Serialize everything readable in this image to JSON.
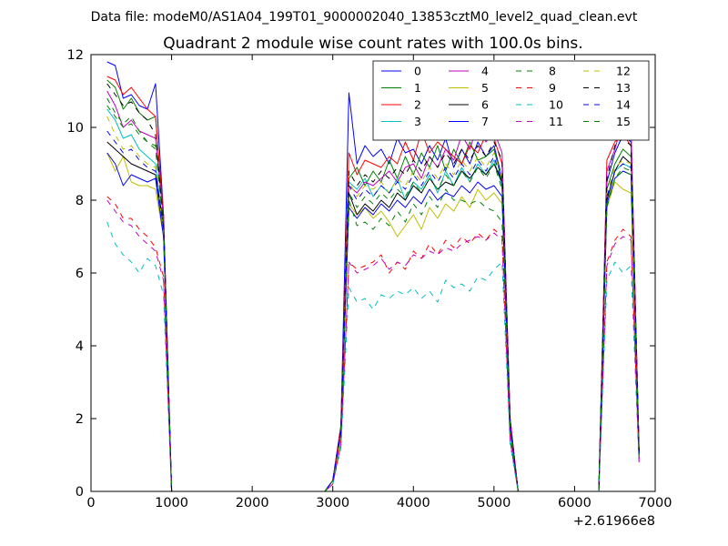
{
  "suptitle": "Data file: modeM0/AS1A04_199T01_9000002040_13853cztM0_level2_quad_clean.evt",
  "chart_data": {
    "type": "line",
    "title": "Quadrant 2 module wise count rates with 100.0s bins.",
    "xlabel": "",
    "ylabel": "",
    "xlim": [
      0,
      7000
    ],
    "ylim": [
      0,
      12
    ],
    "x_offset_label": "+2.61966e8",
    "x_ticks": [
      0,
      1000,
      2000,
      3000,
      4000,
      5000,
      6000,
      7000
    ],
    "y_ticks": [
      0,
      2,
      4,
      6,
      8,
      10,
      12
    ],
    "grid": false,
    "legend_position": "top-right",
    "legend_columns": 4,
    "x": [
      200,
      300,
      400,
      500,
      600,
      700,
      800,
      900,
      1000,
      1100,
      2900,
      3000,
      3100,
      3200,
      3300,
      3400,
      3500,
      3600,
      3700,
      3800,
      3900,
      4000,
      4100,
      4200,
      4300,
      4400,
      4500,
      4600,
      4700,
      4800,
      4900,
      5000,
      5100,
      5200,
      5300,
      5400,
      6200,
      6300,
      6400,
      6500,
      6600,
      6700,
      6800
    ],
    "series": [
      {
        "name": "0",
        "color": "#0000ff",
        "dash": "solid",
        "values": [
          11.8,
          11.7,
          10.8,
          10.9,
          10.6,
          10.5,
          11.2,
          7.6,
          0,
          0,
          0,
          0.3,
          1.8,
          10.95,
          9.0,
          9.5,
          9.2,
          9.4,
          9.0,
          9.7,
          9.3,
          9.4,
          9.0,
          9.5,
          9.1,
          9.7,
          8.9,
          9.4,
          9.0,
          9.6,
          9.2,
          9.5,
          8.6,
          1.9,
          0,
          0,
          0,
          0,
          8.5,
          9.3,
          9.8,
          9.6,
          1.1
        ]
      },
      {
        "name": "1",
        "color": "#008000",
        "dash": "solid",
        "values": [
          11.3,
          11.1,
          10.5,
          10.8,
          10.4,
          10.2,
          10.3,
          7.5,
          0,
          0,
          0,
          0.3,
          1.7,
          8.6,
          8.9,
          8.4,
          8.8,
          8.5,
          9.1,
          8.6,
          9.2,
          8.7,
          9.3,
          8.9,
          9.5,
          8.8,
          9.4,
          9.0,
          9.6,
          9.1,
          9.2,
          9.4,
          8.5,
          1.9,
          0,
          0,
          0,
          0,
          8.3,
          9.0,
          9.4,
          9.2,
          1.0
        ]
      },
      {
        "name": "2",
        "color": "#ff0000",
        "dash": "solid",
        "values": [
          11.4,
          11.3,
          10.9,
          11.1,
          10.8,
          10.5,
          10.3,
          7.6,
          0,
          0,
          0,
          0.3,
          1.8,
          9.3,
          8.7,
          9.1,
          9.0,
          8.9,
          9.2,
          9.0,
          9.6,
          9.1,
          9.9,
          9.3,
          9.6,
          9.4,
          9.2,
          9.0,
          9.5,
          9.3,
          9.8,
          9.7,
          9.0,
          2.0,
          0,
          0,
          0,
          0,
          9.1,
          9.6,
          9.8,
          9.5,
          1.1
        ]
      },
      {
        "name": "3",
        "color": "#00bfbf",
        "dash": "solid",
        "values": [
          10.5,
          10.2,
          9.7,
          9.8,
          9.4,
          9.2,
          9.0,
          7.2,
          0,
          0,
          0,
          0.3,
          1.6,
          8.5,
          8.3,
          8.6,
          8.1,
          8.4,
          8.2,
          8.6,
          8.0,
          8.5,
          8.3,
          8.7,
          8.2,
          8.8,
          8.4,
          8.9,
          8.5,
          9.0,
          8.7,
          9.1,
          8.4,
          1.8,
          0,
          0,
          0,
          0,
          8.0,
          8.8,
          9.0,
          8.9,
          1.0
        ]
      },
      {
        "name": "4",
        "color": "#bf00bf",
        "dash": "solid",
        "values": [
          11.0,
          10.6,
          10.0,
          10.2,
          9.9,
          9.8,
          9.7,
          7.5,
          0,
          0,
          0,
          0.3,
          1.7,
          8.4,
          8.2,
          8.5,
          8.4,
          8.6,
          8.8,
          8.5,
          8.9,
          9.0,
          8.6,
          9.2,
          8.9,
          9.4,
          9.1,
          9.8,
          9.4,
          10.1,
          9.6,
          9.9,
          9.3,
          2.0,
          0,
          0,
          0,
          0,
          8.8,
          9.4,
          10.2,
          10.1,
          1.1
        ]
      },
      {
        "name": "5",
        "color": "#bfbf00",
        "dash": "solid",
        "values": [
          9.3,
          8.8,
          9.2,
          8.5,
          8.4,
          8.4,
          8.3,
          7.0,
          0,
          0,
          0,
          0.3,
          1.5,
          7.9,
          7.6,
          7.8,
          7.5,
          7.7,
          7.4,
          7.0,
          7.3,
          7.6,
          7.2,
          7.8,
          7.5,
          7.9,
          7.7,
          8.1,
          7.8,
          8.3,
          8.0,
          8.2,
          7.9,
          1.7,
          0,
          0,
          0,
          0,
          7.8,
          8.5,
          8.3,
          8.2,
          0.9
        ]
      },
      {
        "name": "6",
        "color": "#000000",
        "dash": "solid",
        "values": [
          9.6,
          9.4,
          9.2,
          9.0,
          8.9,
          8.8,
          8.7,
          7.3,
          0,
          0,
          0,
          0.3,
          1.6,
          8.2,
          7.6,
          7.9,
          7.7,
          8.0,
          7.8,
          8.2,
          8.0,
          8.4,
          8.2,
          8.6,
          8.3,
          8.5,
          8.4,
          8.8,
          8.6,
          8.9,
          8.7,
          9.0,
          8.5,
          1.8,
          0,
          0,
          0,
          0,
          8.0,
          8.8,
          9.2,
          9.0,
          1.0
        ]
      },
      {
        "name": "7",
        "color": "#0000ff",
        "dash": "solid",
        "values": [
          9.3,
          9.0,
          8.4,
          8.7,
          8.6,
          8.5,
          8.6,
          7.0,
          0,
          0,
          0,
          0.3,
          1.6,
          7.8,
          7.5,
          7.8,
          7.6,
          7.9,
          7.7,
          8.0,
          7.8,
          8.1,
          7.9,
          8.3,
          8.0,
          8.2,
          8.1,
          8.4,
          8.2,
          8.5,
          8.3,
          8.4,
          8.1,
          1.7,
          0,
          0,
          0,
          0,
          7.9,
          8.6,
          8.8,
          8.7,
          0.9
        ]
      },
      {
        "name": "8",
        "color": "#008000",
        "dash": "dashed",
        "values": [
          10.8,
          10.4,
          10.1,
          10.3,
          9.9,
          9.6,
          9.4,
          7.3,
          0,
          0,
          0,
          0.3,
          1.6,
          8.0,
          7.3,
          7.4,
          7.2,
          7.5,
          7.3,
          7.7,
          7.4,
          7.9,
          7.6,
          8.1,
          7.8,
          8.3,
          8.0,
          8.0,
          7.9,
          8.0,
          7.8,
          7.7,
          7.4,
          1.6,
          0,
          0,
          0,
          0,
          7.8,
          8.6,
          8.9,
          8.8,
          1.0
        ]
      },
      {
        "name": "9",
        "color": "#ff0000",
        "dash": "dashed",
        "values": [
          8.1,
          7.9,
          7.5,
          7.5,
          7.2,
          7.0,
          6.7,
          5.9,
          0,
          0,
          0,
          0.2,
          1.3,
          6.3,
          6.1,
          6.2,
          6.3,
          6.5,
          6.0,
          6.3,
          6.1,
          6.6,
          6.4,
          6.8,
          6.5,
          6.9,
          6.7,
          7.0,
          6.8,
          7.1,
          6.9,
          7.2,
          7.0,
          1.4,
          0,
          0,
          0,
          0,
          6.3,
          6.9,
          7.2,
          7.0,
          0.8
        ]
      },
      {
        "name": "10",
        "color": "#00bfbf",
        "dash": "dashed",
        "values": [
          7.4,
          6.8,
          6.5,
          6.3,
          6.0,
          6.4,
          6.2,
          5.4,
          0,
          0,
          0,
          0.2,
          1.2,
          5.6,
          5.2,
          5.3,
          5.0,
          5.4,
          5.3,
          5.5,
          5.4,
          5.6,
          5.3,
          5.5,
          5.2,
          5.8,
          5.6,
          5.7,
          5.5,
          5.9,
          5.8,
          6.1,
          6.3,
          1.3,
          0,
          0,
          0,
          0,
          5.8,
          6.3,
          6.0,
          6.2,
          0.7
        ]
      },
      {
        "name": "11",
        "color": "#bf00bf",
        "dash": "dashed",
        "values": [
          8.0,
          7.7,
          7.4,
          7.3,
          7.0,
          6.8,
          6.6,
          5.8,
          0,
          0,
          0,
          0.2,
          1.3,
          6.3,
          6.0,
          6.1,
          6.2,
          6.4,
          6.1,
          6.3,
          6.2,
          6.5,
          6.4,
          6.6,
          6.5,
          6.7,
          6.6,
          6.8,
          6.9,
          7.0,
          6.9,
          7.1,
          6.9,
          1.4,
          0,
          0,
          0,
          0,
          6.2,
          6.8,
          7.0,
          6.9,
          0.8
        ]
      },
      {
        "name": "12",
        "color": "#bfbf00",
        "dash": "dashed",
        "values": [
          10.3,
          9.8,
          9.4,
          9.5,
          9.2,
          9.0,
          8.9,
          7.1,
          0,
          0,
          0,
          0.3,
          1.6,
          8.5,
          8.1,
          8.4,
          8.3,
          8.5,
          8.2,
          8.6,
          8.4,
          8.8,
          8.5,
          8.9,
          8.6,
          9.0,
          8.7,
          9.1,
          8.8,
          9.2,
          8.9,
          9.3,
          8.6,
          1.8,
          0,
          0,
          0,
          0,
          8.2,
          8.9,
          9.1,
          9.0,
          1.0
        ]
      },
      {
        "name": "13",
        "color": "#000000",
        "dash": "dashed",
        "values": [
          11.2,
          10.9,
          10.6,
          10.7,
          10.4,
          10.2,
          9.8,
          7.4,
          0,
          0,
          0,
          0.3,
          1.7,
          8.8,
          8.4,
          8.7,
          8.5,
          8.8,
          8.6,
          8.9,
          8.7,
          9.1,
          8.8,
          9.2,
          8.9,
          9.3,
          9.0,
          9.4,
          9.1,
          9.5,
          9.2,
          9.6,
          9.1,
          1.9,
          0,
          0,
          0,
          0,
          8.6,
          9.5,
          9.7,
          9.5,
          1.1
        ]
      },
      {
        "name": "14",
        "color": "#0000ff",
        "dash": "dashed",
        "values": [
          9.9,
          9.6,
          9.3,
          9.4,
          9.1,
          8.9,
          8.8,
          7.2,
          0,
          0,
          0,
          0.3,
          1.6,
          8.4,
          8.0,
          8.3,
          8.1,
          8.4,
          8.2,
          8.5,
          8.3,
          8.7,
          8.4,
          8.8,
          8.5,
          8.9,
          8.6,
          9.0,
          8.7,
          9.1,
          8.8,
          9.2,
          8.5,
          1.8,
          0,
          0,
          0,
          0,
          8.1,
          8.8,
          9.0,
          8.9,
          1.0
        ]
      },
      {
        "name": "15",
        "color": "#008000",
        "dash": "dashed",
        "values": [
          10.6,
          10.3,
          10.0,
          10.1,
          9.8,
          9.6,
          9.5,
          7.3,
          0,
          0,
          0,
          0.3,
          1.6,
          8.2,
          7.8,
          8.1,
          7.9,
          8.2,
          8.0,
          8.3,
          8.1,
          8.5,
          8.2,
          8.6,
          8.3,
          8.7,
          8.4,
          8.8,
          8.5,
          8.9,
          8.6,
          9.0,
          8.3,
          1.7,
          0,
          0,
          0,
          0,
          7.9,
          8.6,
          8.8,
          8.7,
          1.0
        ]
      }
    ]
  }
}
